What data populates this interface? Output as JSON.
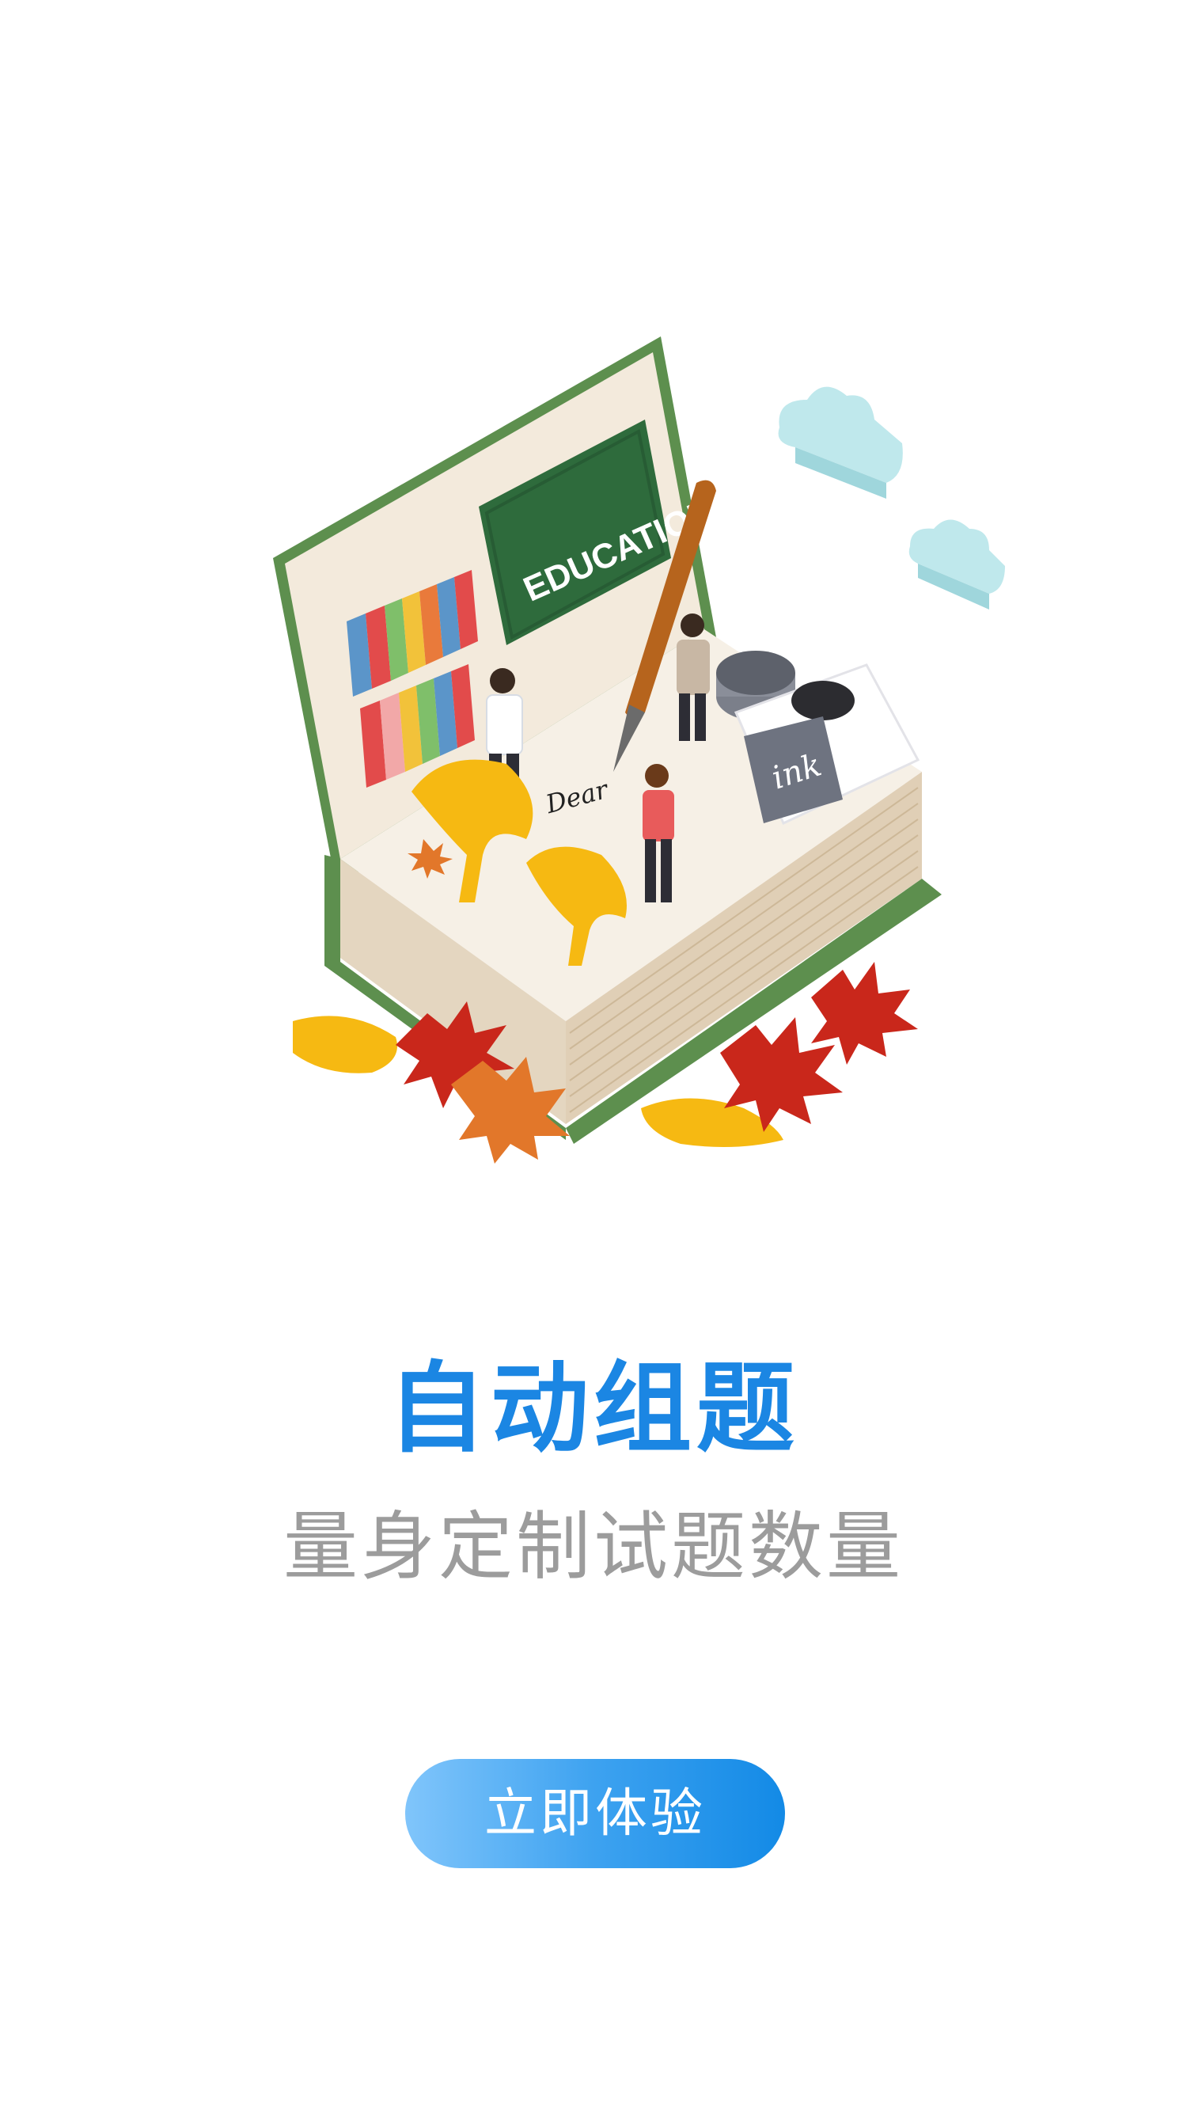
{
  "illustration": {
    "chalkboard_text": "EDUCATION",
    "ink_label": "ink",
    "script_text": "Dear",
    "colors": {
      "book_cover": "#5d8f4e",
      "page": "#f4ece0",
      "chalkboard": "#2e6b3c",
      "cloud": "#bfe8ec",
      "ginkgo": "#f6b912",
      "maple_red": "#c9271b",
      "maple_orange": "#e2772a",
      "pen": "#b6641d"
    }
  },
  "headline": {
    "title": "自动组题",
    "subtitle": "量身定制试题数量",
    "title_color": "#1b86e3",
    "subtitle_color": "#9c9c9c"
  },
  "cta": {
    "label": "立即体验",
    "gradient": [
      "#80c5fb",
      "#138ae6"
    ]
  }
}
